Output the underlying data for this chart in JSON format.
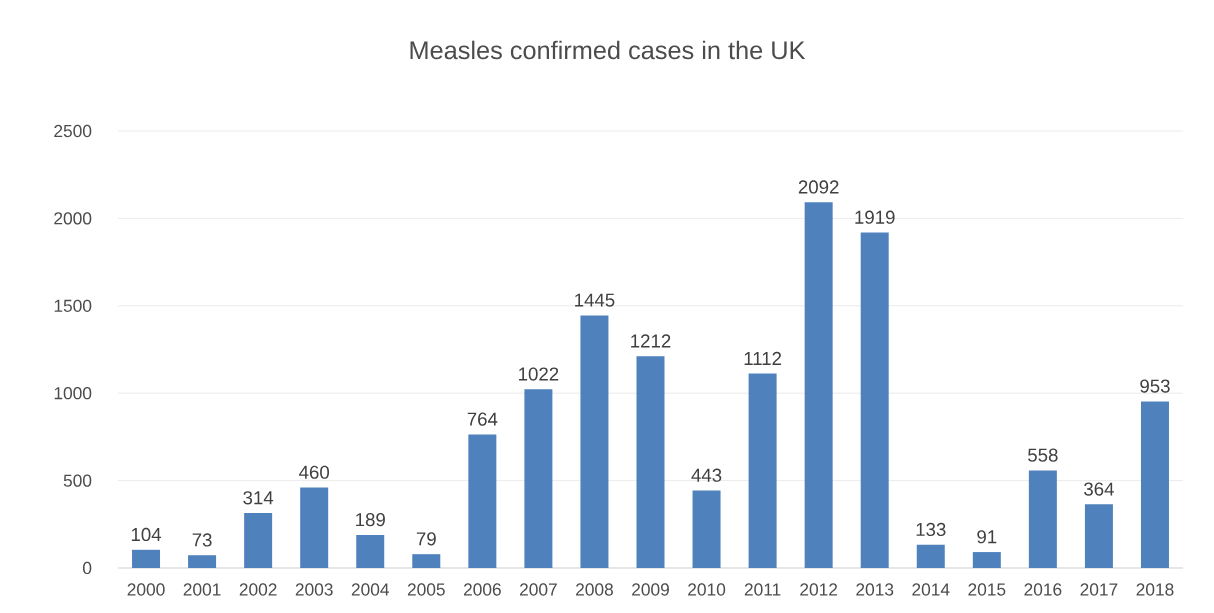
{
  "chart_data": {
    "type": "bar",
    "title": "Measles confirmed cases in the UK",
    "categories": [
      "2000",
      "2001",
      "2002",
      "2003",
      "2004",
      "2005",
      "2006",
      "2007",
      "2008",
      "2009",
      "2010",
      "2011",
      "2012",
      "2013",
      "2014",
      "2015",
      "2016",
      "2017",
      "2018"
    ],
    "values": [
      104,
      73,
      314,
      460,
      189,
      79,
      764,
      1022,
      1445,
      1212,
      443,
      1112,
      2092,
      1919,
      133,
      91,
      558,
      364,
      953
    ],
    "color": "#4f81bd",
    "ylim": [
      0,
      2500
    ],
    "yticks": [
      0,
      500,
      1000,
      1500,
      2000,
      2500
    ],
    "grid": "y",
    "data_labels": true
  }
}
